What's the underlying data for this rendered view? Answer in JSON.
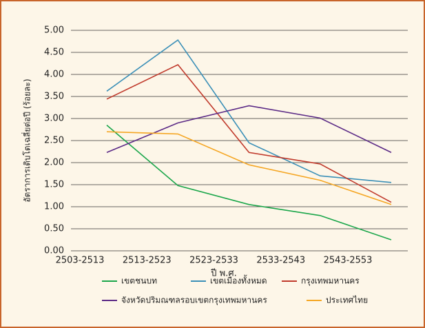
{
  "chart_data": {
    "type": "line",
    "xlabel": "ปี พ.ศ.",
    "ylabel": "อัตราการเติบโตเฉลี่ยต่อปี (ร้อยละ)",
    "categories": [
      "2503-2513",
      "2513-2523",
      "2523-2533",
      "2533-2543",
      "2543-2553"
    ],
    "series": [
      {
        "name": "เขตชนบท",
        "color": "#1aa64a",
        "values": [
          2.85,
          1.48,
          1.05,
          0.8,
          0.25
        ]
      },
      {
        "name": "เขตเมืองทั้งหมด",
        "color": "#3a8fb7",
        "values": [
          3.62,
          4.78,
          2.45,
          1.7,
          1.55
        ]
      },
      {
        "name": "กรุงเทพมหานคร",
        "color": "#c0392b",
        "values": [
          3.44,
          4.22,
          2.23,
          1.97,
          1.1
        ]
      },
      {
        "name": "จังหวัดปริมณฑลรอบเขตกรุงเทพมหานคร",
        "color": "#5b2a86",
        "values": [
          2.23,
          2.9,
          3.29,
          3.01,
          2.23
        ]
      },
      {
        "name": "ประเทศไทย",
        "color": "#f5a623",
        "values": [
          2.7,
          2.65,
          1.95,
          1.6,
          1.05
        ]
      }
    ],
    "ylim": [
      0,
      5
    ],
    "yticks": [
      {
        "value": 0,
        "label": "0.00"
      },
      {
        "value": 0.5,
        "label": "0.50"
      },
      {
        "value": 1,
        "label": "1.00"
      },
      {
        "value": 1.5,
        "label": "1.50"
      },
      {
        "value": 2,
        "label": "2.00"
      },
      {
        "value": 2.5,
        "label": "2.50"
      },
      {
        "value": 3,
        "label": "3.00"
      },
      {
        "value": 3.5,
        "label": "3.50"
      },
      {
        "value": 4,
        "label": "4.00"
      },
      {
        "value": 4.5,
        "label": "4.50"
      },
      {
        "value": 5,
        "label": "5.00"
      }
    ],
    "grid": true
  }
}
